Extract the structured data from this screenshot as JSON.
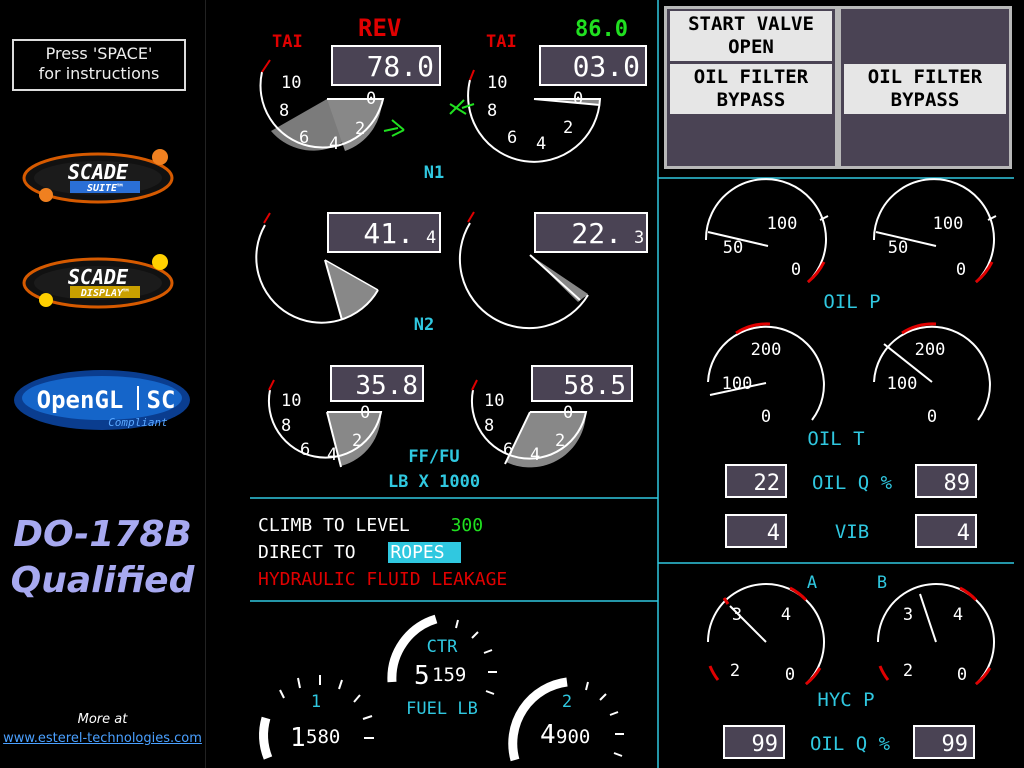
{
  "sidebar": {
    "help_text_line1": "Press 'SPACE'",
    "help_text_line2": "for instructions",
    "logos": [
      {
        "name": "scade-suite-logo",
        "text1": "SCADE",
        "text2": "SUITE™"
      },
      {
        "name": "scade-display-logo",
        "text1": "SCADE",
        "text2": "DISPLAY™"
      },
      {
        "name": "opengl-sc-logo",
        "text1": "OpenGL",
        "text2": "SC",
        "text3": "Compliant"
      }
    ],
    "qualification_line1": "DO-178B",
    "qualification_line2": "Qualified",
    "more_at": "More at",
    "url": "www.esterel-technologies.com"
  },
  "colors": {
    "cyan": "#30c8e0",
    "green": "#20e020",
    "red": "#e00000",
    "amber": "#ff9900",
    "readout_bg": "#4a4354",
    "annunciator_bg": "#e6e6e6",
    "sector": "#888888"
  },
  "n1": {
    "left": {
      "tai": "TAI",
      "status": "REV",
      "readout": "78.0"
    },
    "right": {
      "tai": "TAI",
      "status": "86.0",
      "readout": "03.0"
    },
    "scale": [
      "10",
      "8",
      "6",
      "4",
      "2",
      "0"
    ],
    "label": "N1"
  },
  "n2": {
    "left": {
      "readout_main": "41.",
      "readout_dec": "4"
    },
    "right": {
      "readout_main": "22.",
      "readout_dec": "3"
    },
    "label": "N2"
  },
  "ff": {
    "left": {
      "readout": "35.8"
    },
    "right": {
      "readout": "58.5"
    },
    "label1": "FF/FU",
    "label2": "LB X 1000"
  },
  "messages": {
    "climb_label": "CLIMB TO LEVEL",
    "climb_value": "300",
    "direct_label": "DIRECT TO",
    "direct_value": "ROPES",
    "warning": "HYDRAULIC FLUID LEAKAGE"
  },
  "fuel": {
    "tank1": {
      "label": "1",
      "value_big": "1",
      "value_small": "580"
    },
    "ctr": {
      "label": "CTR",
      "value_big": "5",
      "value_small": "159"
    },
    "tank2": {
      "label": "2",
      "value_big": "4",
      "value_small": "900"
    },
    "label": "FUEL LB"
  },
  "annunciators": {
    "start_valve": "START VALVE OPEN",
    "oil_filter_left": "OIL FILTER BYPASS",
    "oil_filter_right": "OIL FILTER BYPASS"
  },
  "oil_p": {
    "label": "OIL P",
    "scale": [
      "100",
      "50",
      "0"
    ]
  },
  "oil_t": {
    "label": "OIL T",
    "scale": [
      "200",
      "100",
      "0"
    ]
  },
  "oil_q": {
    "label": "OIL Q %",
    "left": "22",
    "right": "89"
  },
  "vib": {
    "label": "VIB",
    "left": "4",
    "right": "4"
  },
  "hyd": {
    "label_a": "A",
    "label_b": "B",
    "label": "HYC P",
    "scale": [
      "3",
      "4",
      "2",
      "0"
    ]
  },
  "hyd_oil_q": {
    "label": "OIL Q %",
    "left": "99",
    "right": "99"
  }
}
